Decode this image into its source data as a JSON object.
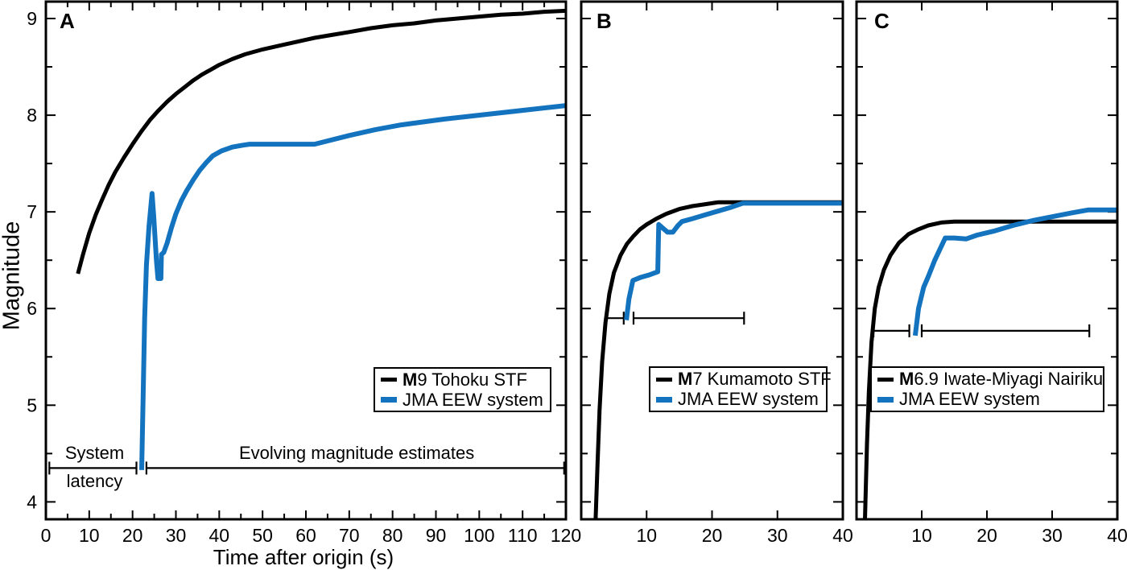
{
  "figure": {
    "ylabel": "Magnitude",
    "xlabel": "Time after origin (s)",
    "background": "#ffffff",
    "frame_color": "#000000",
    "accent_blue": "#1473be"
  },
  "chart_data": [
    {
      "type": "line",
      "panel_label": "A",
      "x_range": [
        0,
        120
      ],
      "y_range": [
        3.82,
        9.175
      ],
      "xtick_major": [
        0,
        10,
        20,
        30,
        40,
        50,
        60,
        70,
        80,
        90,
        100,
        110,
        120
      ],
      "xtick_labels": [
        "0",
        "10",
        "20",
        "30",
        "40",
        "50",
        "60",
        "70",
        "80",
        "90",
        "100",
        "110",
        "120"
      ],
      "xtick_minor_step": 5,
      "ytick_major": [
        4,
        5,
        6,
        7,
        8,
        9
      ],
      "ytick_labels": [
        "4",
        "5",
        "6",
        "7",
        "8",
        "9"
      ],
      "show_ytick_labels": true,
      "series": [
        {
          "name": "M9 Tohoku STF",
          "color": "#000000",
          "stroke_width": 5,
          "points": [
            [
              7.4,
              6.36
            ],
            [
              8.5,
              6.55
            ],
            [
              10,
              6.78
            ],
            [
              11.5,
              6.97
            ],
            [
              13,
              7.13
            ],
            [
              14.5,
              7.28
            ],
            [
              16,
              7.41
            ],
            [
              18,
              7.56
            ],
            [
              20,
              7.7
            ],
            [
              22,
              7.83
            ],
            [
              24,
              7.95
            ],
            [
              26,
              8.05
            ],
            [
              28,
              8.14
            ],
            [
              30,
              8.22
            ],
            [
              32,
              8.29
            ],
            [
              34,
              8.36
            ],
            [
              36,
              8.42
            ],
            [
              38,
              8.47
            ],
            [
              40,
              8.52
            ],
            [
              43,
              8.58
            ],
            [
              46,
              8.63
            ],
            [
              50,
              8.68
            ],
            [
              54,
              8.72
            ],
            [
              58,
              8.76
            ],
            [
              62,
              8.8
            ],
            [
              66,
              8.83
            ],
            [
              70,
              8.86
            ],
            [
              75,
              8.9
            ],
            [
              80,
              8.93
            ],
            [
              85,
              8.95
            ],
            [
              90,
              8.98
            ],
            [
              95,
              9.0
            ],
            [
              100,
              9.02
            ],
            [
              105,
              9.04
            ],
            [
              110,
              9.05
            ],
            [
              115,
              9.07
            ],
            [
              120,
              9.08
            ]
          ]
        },
        {
          "name": "JMA EEW system",
          "color": "#1473be",
          "stroke_width": 6,
          "points": [
            [
              22.1,
              4.33
            ],
            [
              22.4,
              5.0
            ],
            [
              22.8,
              5.9
            ],
            [
              23.2,
              6.45
            ],
            [
              23.8,
              6.85
            ],
            [
              24.5,
              7.19
            ],
            [
              24.9,
              6.95
            ],
            [
              25.5,
              6.5
            ],
            [
              25.85,
              6.31
            ],
            [
              26.55,
              6.31
            ],
            [
              26.65,
              6.56
            ],
            [
              27.2,
              6.58
            ],
            [
              28,
              6.68
            ],
            [
              29,
              6.84
            ],
            [
              30,
              6.98
            ],
            [
              31.3,
              7.12
            ],
            [
              32.5,
              7.22
            ],
            [
              34,
              7.33
            ],
            [
              35.5,
              7.43
            ],
            [
              37,
              7.51
            ],
            [
              38.5,
              7.58
            ],
            [
              40.5,
              7.63
            ],
            [
              43,
              7.67
            ],
            [
              45.5,
              7.69
            ],
            [
              47,
              7.7
            ],
            [
              62,
              7.7
            ],
            [
              70,
              7.79
            ],
            [
              76,
              7.85
            ],
            [
              82,
              7.9
            ],
            [
              92,
              7.96
            ],
            [
              102,
              8.01
            ],
            [
              112,
              8.06
            ],
            [
              120,
              8.1
            ]
          ]
        }
      ],
      "brackets": [
        {
          "y": 4.35,
          "x1": 0.8,
          "x2": 20.9
        },
        {
          "y": 4.35,
          "x1": 23.2,
          "x2": 119.6
        }
      ],
      "annotations": [
        {
          "text": "System"
        },
        {
          "text": "latency"
        },
        {
          "text": "Evolving magnitude estimates"
        }
      ],
      "legend": {
        "entries": [
          {
            "prefix": "M",
            "rest": "9 Tohoku STF"
          },
          {
            "prefix": "",
            "rest": "JMA EEW system"
          }
        ]
      }
    },
    {
      "type": "line",
      "panel_label": "B",
      "x_range": [
        0,
        40
      ],
      "y_range": [
        3.82,
        9.175
      ],
      "xtick_major": [
        0,
        10,
        20,
        30,
        40
      ],
      "xtick_labels": [
        "",
        "10",
        "20",
        "30",
        "40"
      ],
      "xtick_minor_step": 10,
      "ytick_major": [
        4,
        5,
        6,
        7,
        8,
        9
      ],
      "ytick_labels": [
        "4",
        "5",
        "6",
        "7",
        "8",
        "9"
      ],
      "show_ytick_labels": false,
      "series": [
        {
          "name": "M7 Kumamoto STF",
          "color": "#000000",
          "stroke_width": 5,
          "points": [
            [
              2.2,
              3.82
            ],
            [
              2.5,
              4.4
            ],
            [
              2.8,
              4.95
            ],
            [
              3.2,
              5.45
            ],
            [
              3.7,
              5.85
            ],
            [
              4.3,
              6.15
            ],
            [
              5,
              6.37
            ],
            [
              6,
              6.55
            ],
            [
              7,
              6.67
            ],
            [
              8,
              6.75
            ],
            [
              9,
              6.82
            ],
            [
              10,
              6.87
            ],
            [
              11.5,
              6.93
            ],
            [
              13,
              6.98
            ],
            [
              15,
              7.03
            ],
            [
              17,
              7.06
            ],
            [
              19,
              7.08
            ],
            [
              21,
              7.1
            ],
            [
              25,
              7.1
            ],
            [
              40,
              7.1
            ]
          ]
        },
        {
          "name": "JMA EEW system",
          "color": "#1473be",
          "stroke_width": 6,
          "points": [
            [
              6.9,
              5.88
            ],
            [
              7.3,
              6.1
            ],
            [
              7.9,
              6.29
            ],
            [
              9,
              6.32
            ],
            [
              10.5,
              6.35
            ],
            [
              11.7,
              6.38
            ],
            [
              11.85,
              6.87
            ],
            [
              12.5,
              6.83
            ],
            [
              13.2,
              6.79
            ],
            [
              14,
              6.79
            ],
            [
              14.8,
              6.86
            ],
            [
              15.4,
              6.9
            ],
            [
              17,
              6.93
            ],
            [
              19,
              6.97
            ],
            [
              21,
              7.01
            ],
            [
              23,
              7.05
            ],
            [
              24.7,
              7.09
            ],
            [
              40,
              7.09
            ]
          ]
        }
      ],
      "brackets": [
        {
          "y": 5.9,
          "x1": 3.8,
          "x2": 6.5
        },
        {
          "y": 5.9,
          "x1": 8.0,
          "x2": 24.9
        }
      ],
      "annotations": [],
      "legend": {
        "entries": [
          {
            "prefix": "M",
            "rest": "7 Kumamoto STF"
          },
          {
            "prefix": "",
            "rest": "JMA EEW system"
          }
        ]
      }
    },
    {
      "type": "line",
      "panel_label": "C",
      "x_range": [
        0,
        40
      ],
      "y_range": [
        3.82,
        9.175
      ],
      "xtick_major": [
        0,
        10,
        20,
        30,
        40
      ],
      "xtick_labels": [
        "",
        "10",
        "20",
        "30",
        "40"
      ],
      "xtick_minor_step": 10,
      "ytick_major": [
        4,
        5,
        6,
        7,
        8,
        9
      ],
      "ytick_labels": [
        "4",
        "5",
        "6",
        "7",
        "8",
        "9"
      ],
      "show_ytick_labels": false,
      "series": [
        {
          "name": "M6.9 Iwate-Miyagi Nairiku",
          "color": "#000000",
          "stroke_width": 5,
          "points": [
            [
              1.3,
              3.82
            ],
            [
              1.6,
              4.6
            ],
            [
              1.9,
              5.15
            ],
            [
              2.3,
              5.65
            ],
            [
              2.8,
              6.0
            ],
            [
              3.4,
              6.22
            ],
            [
              4.2,
              6.4
            ],
            [
              5.2,
              6.55
            ],
            [
              6.5,
              6.68
            ],
            [
              8,
              6.77
            ],
            [
              9.5,
              6.82
            ],
            [
              11,
              6.86
            ],
            [
              13,
              6.89
            ],
            [
              15,
              6.9
            ],
            [
              40,
              6.9
            ]
          ]
        },
        {
          "name": "JMA EEW system",
          "color": "#1473be",
          "stroke_width": 6,
          "points": [
            [
              9.0,
              5.72
            ],
            [
              9.5,
              6.0
            ],
            [
              10.3,
              6.22
            ],
            [
              11,
              6.33
            ],
            [
              12,
              6.5
            ],
            [
              13.6,
              6.73
            ],
            [
              15,
              6.73
            ],
            [
              16.8,
              6.72
            ],
            [
              18.5,
              6.76
            ],
            [
              21,
              6.8
            ],
            [
              24,
              6.86
            ],
            [
              27,
              6.91
            ],
            [
              30,
              6.95
            ],
            [
              33,
              6.99
            ],
            [
              35.5,
              7.02
            ],
            [
              40,
              7.02
            ]
          ]
        }
      ],
      "brackets": [
        {
          "y": 5.77,
          "x1": 2.6,
          "x2": 8.1
        },
        {
          "y": 5.77,
          "x1": 10.0,
          "x2": 35.7
        }
      ],
      "annotations": [],
      "legend": {
        "entries": [
          {
            "prefix": "M",
            "rest": "6.9 Iwate-Miyagi Nairiku"
          },
          {
            "prefix": "",
            "rest": "JMA EEW system"
          }
        ]
      }
    }
  ]
}
